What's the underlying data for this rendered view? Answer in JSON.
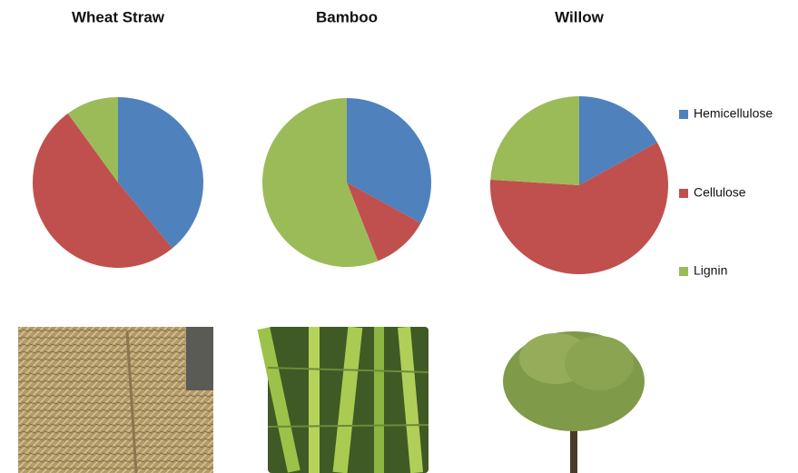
{
  "chart_data": [
    {
      "type": "pie",
      "title": "Wheat Straw",
      "categories": [
        "Hemicellulose",
        "Cellulose",
        "Lignin"
      ],
      "colors": [
        "#4f81bd",
        "#c0504d",
        "#9bbb59"
      ],
      "values": [
        39,
        51,
        10
      ]
    },
    {
      "type": "pie",
      "title": "Bamboo",
      "categories": [
        "Hemicellulose",
        "Cellulose",
        "Lignin"
      ],
      "colors": [
        "#4f81bd",
        "#c0504d",
        "#9bbb59"
      ],
      "values": [
        33,
        11,
        56
      ]
    },
    {
      "type": "pie",
      "title": "Willow",
      "categories": [
        "Hemicellulose",
        "Cellulose",
        "Lignin"
      ],
      "colors": [
        "#4f81bd",
        "#c0504d",
        "#9bbb59"
      ],
      "values": [
        17,
        59,
        24
      ],
      "legend": true
    }
  ]
}
